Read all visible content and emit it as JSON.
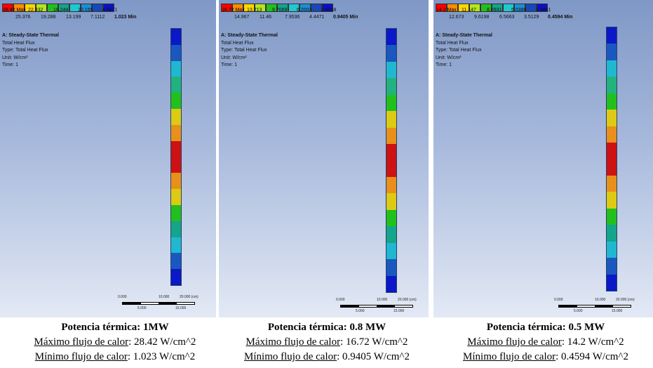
{
  "legend_colors": [
    "#ff0000",
    "#ff8c00",
    "#ffd700",
    "#b5e61d",
    "#22c01c",
    "#14a58a",
    "#20c8d0",
    "#1b8fd6",
    "#1848b8",
    "#0a10c8"
  ],
  "panels": [
    {
      "legend_max": "28.42 Max",
      "legend_row1": [
        "22.332",
        "16.244",
        "10.155",
        "4.0671"
      ],
      "legend_row2": [
        "25.376",
        "19.288",
        "13.199",
        "7.1112"
      ],
      "legend_min": "1.023 Min",
      "info": [
        "A: Steady-State Thermal",
        "Total Heat Flux",
        "Type: Total Heat Flux",
        "Unit: W/cm²",
        "Time: 1"
      ],
      "rod_colors": [
        "#0a18c8",
        "#1a58c0",
        "#20b8d0",
        "#22b27e",
        "#22c01c",
        "#dccb12",
        "#e8901a",
        "#cc1212",
        "#cc1212",
        "#e8901a",
        "#dccb12",
        "#22c01c",
        "#14a58a",
        "#20b8d0",
        "#1a58c0",
        "#0a18c8"
      ],
      "scale": {
        "top": [
          "0.000",
          "10.000",
          "20.000 (cm)"
        ],
        "bottom": [
          "5.000",
          "15.000"
        ]
      },
      "caption": {
        "title": "Potencia térmica: 1MW",
        "max_label": "Máximo flujo de calor",
        "max_value": ": 28.42 W/cm^2",
        "min_label": "Mínimo flujo de calor",
        "min_value": ": 1.023 W/cm^2"
      }
    },
    {
      "legend_max": "16.72 Max",
      "legend_row1": [
        "13.213",
        "9.7069",
        "6.2003",
        "2.6938"
      ],
      "legend_row2": [
        "14.967",
        "11.46",
        "7.9536",
        "4.4471"
      ],
      "legend_min": "0.9405 Min",
      "info": [
        "A: Steady-State Thermal",
        "Total Heat Flux",
        "Type: Total Heat Flux",
        "Unit: W/cm²",
        "Time: 1"
      ],
      "rod_colors": [
        "#0a18c8",
        "#1a58c0",
        "#20b8d0",
        "#22b27e",
        "#22c01c",
        "#dccb12",
        "#e8901a",
        "#cc1212",
        "#cc1212",
        "#e8901a",
        "#dccb12",
        "#22c01c",
        "#14a58a",
        "#20b8d0",
        "#1a58c0",
        "#0a18c8"
      ],
      "scale": {
        "top": [
          "0.000",
          "10.000",
          "20.000 (cm)"
        ],
        "bottom": [
          "5.000",
          "15.000"
        ]
      },
      "caption": {
        "title": "Potencia térmica: 0.8 MW",
        "max_label": "Máximo flujo de calor",
        "max_value": ": 16.72 W/cm^2",
        "min_label": "Mínimo flujo de calor",
        "min_value": ": 0.9405 W/cm^2"
      }
    },
    {
      "legend_max": "14.2 Max",
      "legend_row1": [
        "11.147",
        "8.0931",
        "5.0396",
        "1.9861"
      ],
      "legend_row2": [
        "12.673",
        "9.6198",
        "6.5663",
        "3.5129"
      ],
      "legend_min": "0.4594 Min",
      "info": [
        "A: Steady-State Thermal",
        "Total Heat Flux",
        "Type: Total Heat Flux",
        "Unit: W/cm²",
        "Time: 1"
      ],
      "rod_colors": [
        "#0a18c8",
        "#1a58c0",
        "#20b8d0",
        "#22b27e",
        "#22c01c",
        "#dccb12",
        "#e8901a",
        "#cc1212",
        "#cc1212",
        "#e8901a",
        "#dccb12",
        "#22c01c",
        "#14a58a",
        "#20b8d0",
        "#1a58c0",
        "#0a18c8"
      ],
      "scale": {
        "top": [
          "0.000",
          "10.000",
          "20.000 (cm)"
        ],
        "bottom": [
          "5.000",
          "15.000"
        ]
      },
      "caption": {
        "title": "Potencia térmica: 0.5 MW",
        "max_label": "Máximo flujo de calor",
        "max_value": ": 14.2 W/cm^2",
        "min_label": "Mínimo flujo de calor",
        "min_value": ": 0.4594 W/cm^2"
      }
    }
  ]
}
